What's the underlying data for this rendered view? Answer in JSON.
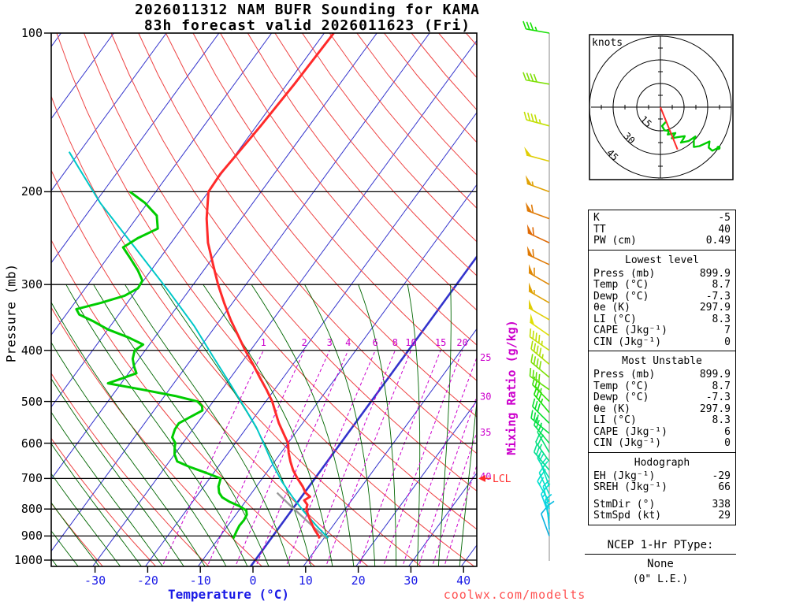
{
  "title": {
    "line1": "2026011312 NAM BUFR Sounding for KAMA",
    "line2": "83h forecast valid 2026011623 (Fri)"
  },
  "watermark": "coolwx.com/modelts",
  "axes": {
    "pressure_label": "Pressure (mb)",
    "temperature_label": "Temperature (°C)",
    "mixing_ratio_label": "Mixing Ratio (g/kg)",
    "pressure_ticks": [
      100,
      200,
      300,
      400,
      500,
      600,
      700,
      800,
      900,
      1000
    ],
    "temperature_ticks": [
      -30,
      -20,
      -10,
      0,
      10,
      20,
      30,
      40
    ]
  },
  "chart_data": {
    "type": "skewt-log-p-sounding",
    "pressure_range_mb": [
      100,
      1030
    ],
    "lcl": {
      "pressure_mb": 700,
      "label": "LCL"
    },
    "temperature_profile": {
      "color": "#ff2a2a",
      "points": [
        [
          910,
          9.2
        ],
        [
          900,
          8.7
        ],
        [
          875,
          7.0
        ],
        [
          850,
          5.5
        ],
        [
          825,
          4.0
        ],
        [
          800,
          2.6
        ],
        [
          785,
          2.2
        ],
        [
          770,
          1.0
        ],
        [
          758,
          1.6
        ],
        [
          745,
          0.2
        ],
        [
          725,
          -1.2
        ],
        [
          700,
          -3.3
        ],
        [
          675,
          -5.3
        ],
        [
          650,
          -7.0
        ],
        [
          625,
          -8.6
        ],
        [
          600,
          -10.0
        ],
        [
          575,
          -12.2
        ],
        [
          550,
          -14.5
        ],
        [
          525,
          -16.6
        ],
        [
          500,
          -18.8
        ],
        [
          475,
          -21.5
        ],
        [
          450,
          -24.5
        ],
        [
          425,
          -27.6
        ],
        [
          400,
          -31.0
        ],
        [
          375,
          -34.4
        ],
        [
          350,
          -38.0
        ],
        [
          325,
          -41.6
        ],
        [
          300,
          -45.3
        ],
        [
          275,
          -49.0
        ],
        [
          250,
          -53.0
        ],
        [
          225,
          -56.6
        ],
        [
          200,
          -60.0
        ],
        [
          185,
          -60.2
        ],
        [
          170,
          -59.8
        ],
        [
          150,
          -59.2
        ],
        [
          125,
          -58.6
        ],
        [
          100,
          -58.2
        ]
      ]
    },
    "dewpoint_profile": {
      "color": "#00cc00",
      "points": [
        [
          910,
          -7.2
        ],
        [
          900,
          -7.3
        ],
        [
          880,
          -7.6
        ],
        [
          860,
          -7.8
        ],
        [
          840,
          -7.7
        ],
        [
          820,
          -7.9
        ],
        [
          805,
          -8.6
        ],
        [
          790,
          -10.5
        ],
        [
          775,
          -13.0
        ],
        [
          760,
          -15.0
        ],
        [
          745,
          -16.2
        ],
        [
          725,
          -17.2
        ],
        [
          700,
          -17.9
        ],
        [
          685,
          -21.0
        ],
        [
          665,
          -25.5
        ],
        [
          650,
          -28.5
        ],
        [
          630,
          -30.0
        ],
        [
          610,
          -31.0
        ],
        [
          600,
          -31.4
        ],
        [
          585,
          -32.8
        ],
        [
          565,
          -33.4
        ],
        [
          550,
          -33.5
        ],
        [
          535,
          -32.2
        ],
        [
          520,
          -30.8
        ],
        [
          510,
          -31.5
        ],
        [
          500,
          -33.0
        ],
        [
          488,
          -38.0
        ],
        [
          475,
          -45.0
        ],
        [
          462,
          -52.5
        ],
        [
          452,
          -50.5
        ],
        [
          442,
          -48.5
        ],
        [
          430,
          -49.8
        ],
        [
          415,
          -51.2
        ],
        [
          400,
          -52.0
        ],
        [
          390,
          -51.2
        ],
        [
          378,
          -55.0
        ],
        [
          365,
          -60.0
        ],
        [
          352,
          -64.0
        ],
        [
          342,
          -67.5
        ],
        [
          334,
          -68.8
        ],
        [
          325,
          -65.0
        ],
        [
          315,
          -61.5
        ],
        [
          305,
          -60.0
        ],
        [
          295,
          -60.2
        ],
        [
          282,
          -62.5
        ],
        [
          268,
          -65.5
        ],
        [
          255,
          -68.5
        ],
        [
          245,
          -67.0
        ],
        [
          235,
          -64.5
        ],
        [
          222,
          -66.5
        ],
        [
          210,
          -70.5
        ],
        [
          200,
          -74.9
        ]
      ]
    },
    "wetbulb_parcel_curve": {
      "color": "#00c8c8",
      "points": [
        [
          908,
          10.8
        ],
        [
          860,
          6.8
        ],
        [
          810,
          2.6
        ],
        [
          760,
          -1.6
        ],
        [
          710,
          -5.8
        ],
        [
          660,
          -9.8
        ],
        [
          610,
          -13.8
        ],
        [
          560,
          -18.2
        ],
        [
          510,
          -23.6
        ],
        [
          460,
          -29.6
        ],
        [
          410,
          -36.4
        ],
        [
          360,
          -44.0
        ],
        [
          310,
          -53.5
        ],
        [
          260,
          -65.0
        ],
        [
          210,
          -79.0
        ],
        [
          180,
          -88.0
        ],
        [
          168,
          -92.0
        ]
      ]
    },
    "surface_parcel_to_lcl": {
      "color": "#9a9a9a",
      "points": [
        [
          910,
          10.5
        ],
        [
          870,
          6.9
        ],
        [
          830,
          3.2
        ],
        [
          790,
          -0.7
        ],
        [
          760,
          -3.7
        ],
        [
          745,
          -5.2
        ]
      ]
    },
    "background": {
      "isotherms_c": {
        "start": -120,
        "end": 40,
        "step": 10,
        "color": "#3333cc",
        "zero_line_bold": true
      },
      "dry_adiabats_c": {
        "start": -30,
        "end": 200,
        "step": 10,
        "color": "#ee4444"
      },
      "moist_adiabats_c": {
        "start": -48,
        "end": 44,
        "step": 4,
        "top_mb": 300,
        "color": "#006600"
      },
      "mixing_ratio_gkg": {
        "values": [
          1,
          2,
          3,
          4,
          6,
          8,
          10,
          15,
          20,
          25,
          30,
          35,
          40
        ],
        "label_row_mb": 400,
        "color": "#cc00cc"
      }
    },
    "wind_barbs": {
      "units": "kt",
      "levels": [
        [
          900,
          340,
          10
        ],
        [
          875,
          355,
          12
        ],
        [
          850,
          350,
          15
        ],
        [
          825,
          340,
          16
        ],
        [
          800,
          345,
          18
        ],
        [
          775,
          330,
          19
        ],
        [
          750,
          335,
          20
        ],
        [
          725,
          340,
          21
        ],
        [
          700,
          330,
          22
        ],
        [
          675,
          320,
          24
        ],
        [
          650,
          325,
          25
        ],
        [
          625,
          330,
          26
        ],
        [
          600,
          320,
          28
        ],
        [
          575,
          310,
          29
        ],
        [
          550,
          315,
          30
        ],
        [
          525,
          320,
          33
        ],
        [
          500,
          315,
          35
        ],
        [
          475,
          305,
          38
        ],
        [
          450,
          310,
          40
        ],
        [
          425,
          310,
          43
        ],
        [
          400,
          305,
          45
        ],
        [
          375,
          305,
          48
        ],
        [
          350,
          300,
          50
        ],
        [
          325,
          300,
          55
        ],
        [
          300,
          300,
          58
        ],
        [
          275,
          295,
          60
        ],
        [
          250,
          295,
          62
        ],
        [
          225,
          290,
          60
        ],
        [
          200,
          290,
          55
        ],
        [
          175,
          285,
          50
        ],
        [
          150,
          285,
          45
        ],
        [
          125,
          280,
          40
        ],
        [
          100,
          280,
          33
        ]
      ]
    },
    "hodograph": {
      "unit_label": "knots",
      "rings_kt": [
        15,
        30,
        45
      ],
      "trace_max_pressure_mb": 400,
      "storm_motion": {
        "dir_deg": 338,
        "speed_kt": 29
      }
    }
  },
  "indices": {
    "summary": {
      "rows": [
        [
          "K",
          "-5"
        ],
        [
          "TT",
          "40"
        ],
        [
          "PW (cm)",
          "0.49"
        ]
      ]
    },
    "lowest_level": {
      "header": "Lowest level",
      "rows": [
        [
          "Press (mb)",
          "899.9"
        ],
        [
          "Temp (°C)",
          "8.7"
        ],
        [
          "Dewp (°C)",
          "-7.3"
        ],
        [
          "θe (K)",
          "297.9"
        ],
        [
          "LI (°C)",
          "8.3"
        ],
        [
          "CAPE (Jkg⁻¹)",
          "7"
        ],
        [
          "CIN (Jkg⁻¹)",
          "0"
        ]
      ]
    },
    "most_unstable": {
      "header": "Most Unstable",
      "rows": [
        [
          "Press (mb)",
          "899.9"
        ],
        [
          "Temp (°C)",
          "8.7"
        ],
        [
          "Dewp (°C)",
          "-7.3"
        ],
        [
          "θe (K)",
          "297.9"
        ],
        [
          "LI (°C)",
          "8.3"
        ],
        [
          "CAPE (Jkg⁻¹)",
          "6"
        ],
        [
          "CIN (Jkg⁻¹)",
          "0"
        ]
      ]
    },
    "hodograph": {
      "header": "Hodograph",
      "gap_before_row": 2,
      "rows": [
        [
          "EH (Jkg⁻¹)",
          "-29"
        ],
        [
          "SREH (Jkg⁻¹)",
          "66"
        ],
        [
          "StmDir (°)",
          "338"
        ],
        [
          "StmSpd (kt)",
          "29"
        ]
      ]
    }
  },
  "ptype": {
    "header": "NCEP 1-Hr PType:",
    "value": "None",
    "subtext": "(0\" L.E.)"
  }
}
